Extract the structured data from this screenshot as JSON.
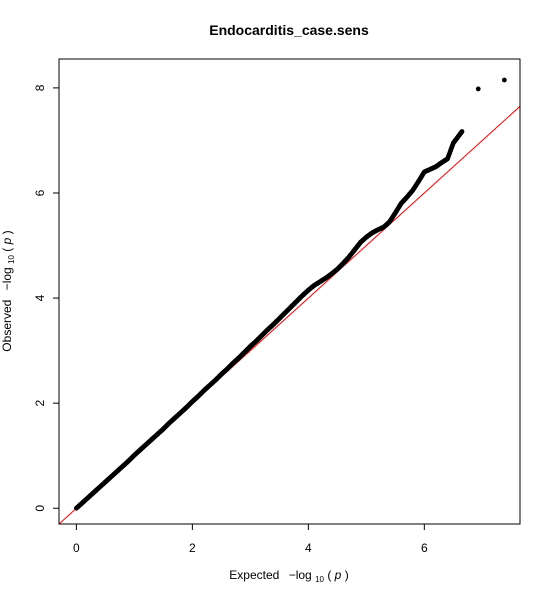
{
  "chart_data": {
    "type": "scatter",
    "title": "Endocarditis_case.sens",
    "xlabel": {
      "prefix": "Expected",
      "minus_log": "−log",
      "subscript": "10",
      "open_paren": "(",
      "var": "p",
      "close_paren": ")"
    },
    "ylabel": {
      "prefix": "Observed",
      "minus_log": "−log",
      "subscript": "10",
      "open_paren": "(",
      "var": "p",
      "close_paren": ")"
    },
    "xlim": [
      -0.3,
      7.65
    ],
    "ylim": [
      -0.3,
      8.55
    ],
    "xticks": [
      0,
      2,
      4,
      6
    ],
    "xtick_labels": [
      "0",
      "2",
      "4",
      "6"
    ],
    "yticks": [
      0,
      2,
      4,
      6,
      8
    ],
    "ytick_labels": [
      "0",
      "2",
      "4",
      "6",
      "8"
    ],
    "grid": false,
    "reference_line": {
      "slope": 1,
      "intercept": 0,
      "color": "#ff0000"
    },
    "point_color": "#000000",
    "series": [
      {
        "points": [
          [
            0.0,
            0.0
          ],
          [
            0.1,
            0.1
          ],
          [
            0.2,
            0.2
          ],
          [
            0.3,
            0.3
          ],
          [
            0.4,
            0.4
          ],
          [
            0.5,
            0.5
          ],
          [
            0.6,
            0.6
          ],
          [
            0.7,
            0.7
          ],
          [
            0.8,
            0.8
          ],
          [
            0.9,
            0.9
          ],
          [
            1.0,
            1.01
          ],
          [
            1.1,
            1.11
          ],
          [
            1.2,
            1.21
          ],
          [
            1.3,
            1.31
          ],
          [
            1.4,
            1.41
          ],
          [
            1.5,
            1.51
          ],
          [
            1.6,
            1.62
          ],
          [
            1.7,
            1.72
          ],
          [
            1.8,
            1.82
          ],
          [
            1.9,
            1.92
          ],
          [
            2.0,
            2.03
          ],
          [
            2.1,
            2.13
          ],
          [
            2.2,
            2.24
          ],
          [
            2.3,
            2.34
          ],
          [
            2.4,
            2.44
          ],
          [
            2.5,
            2.55
          ],
          [
            2.6,
            2.65
          ],
          [
            2.7,
            2.76
          ],
          [
            2.8,
            2.86
          ],
          [
            2.9,
            2.97
          ],
          [
            3.0,
            3.08
          ],
          [
            3.1,
            3.18
          ],
          [
            3.2,
            3.29
          ],
          [
            3.3,
            3.4
          ],
          [
            3.4,
            3.5
          ],
          [
            3.5,
            3.61
          ],
          [
            3.6,
            3.72
          ],
          [
            3.7,
            3.83
          ],
          [
            3.8,
            3.94
          ],
          [
            3.9,
            4.05
          ],
          [
            4.0,
            4.15
          ],
          [
            4.1,
            4.24
          ],
          [
            4.2,
            4.31
          ],
          [
            4.3,
            4.38
          ],
          [
            4.4,
            4.46
          ],
          [
            4.5,
            4.55
          ],
          [
            4.6,
            4.66
          ],
          [
            4.7,
            4.78
          ],
          [
            4.8,
            4.92
          ],
          [
            4.9,
            5.06
          ],
          [
            5.0,
            5.16
          ],
          [
            5.1,
            5.24
          ],
          [
            5.2,
            5.3
          ],
          [
            5.3,
            5.35
          ],
          [
            5.4,
            5.45
          ],
          [
            5.5,
            5.62
          ],
          [
            5.6,
            5.8
          ],
          [
            5.7,
            5.92
          ],
          [
            5.8,
            6.05
          ],
          [
            5.9,
            6.22
          ],
          [
            6.0,
            6.4
          ],
          [
            6.1,
            6.45
          ],
          [
            6.2,
            6.5
          ],
          [
            6.3,
            6.58
          ],
          [
            6.4,
            6.65
          ],
          [
            6.5,
            6.95
          ],
          [
            6.65,
            7.17
          ],
          [
            6.93,
            7.98
          ],
          [
            7.38,
            8.15
          ]
        ]
      }
    ]
  }
}
